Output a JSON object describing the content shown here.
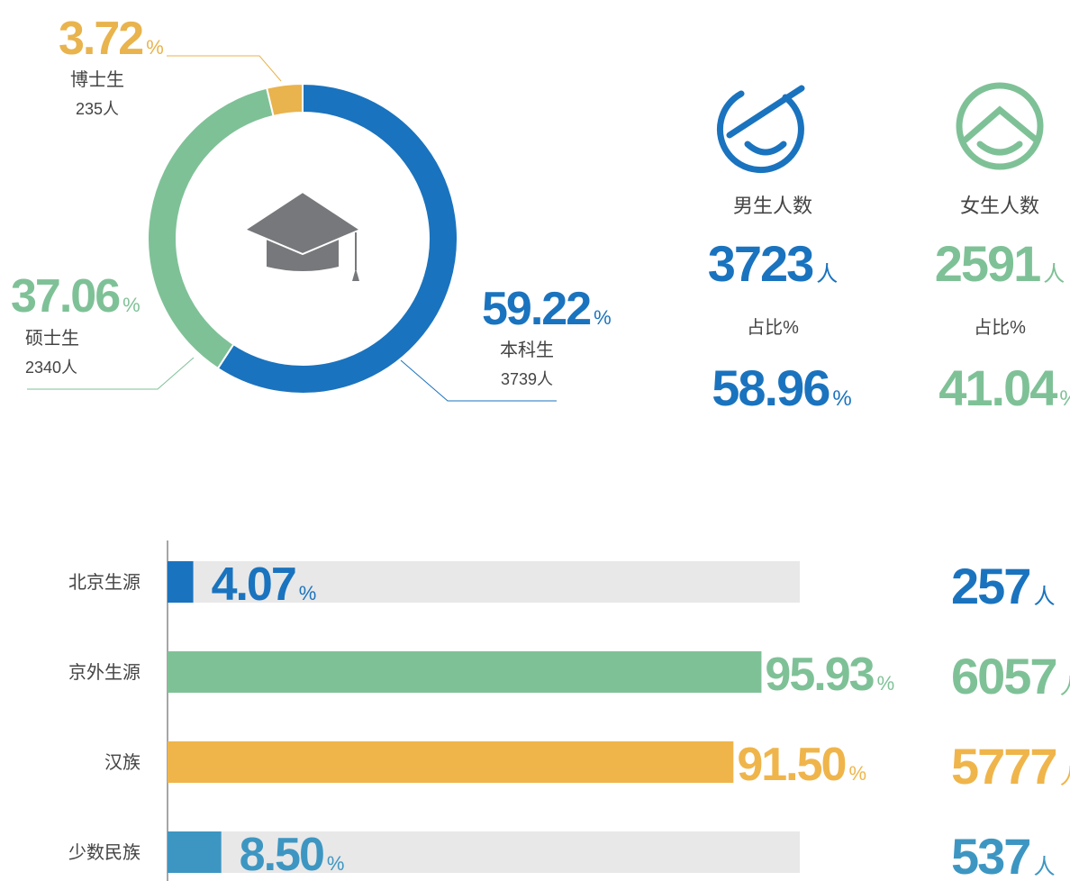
{
  "chart_data": [
    {
      "type": "donut",
      "categories": [
        "本科生",
        "硕士生",
        "博士生"
      ],
      "values": [
        59.22,
        37.06,
        3.72
      ],
      "counts": [
        3739,
        2340,
        235
      ],
      "value_unit": "%",
      "count_unit": "人",
      "colors": [
        "#1a73be",
        "#7fc197",
        "#e9b34d"
      ]
    },
    {
      "type": "hbar",
      "categories": [
        "北京生源",
        "京外生源",
        "汉族",
        "少数民族"
      ],
      "values": [
        4.07,
        95.93,
        91.5,
        8.5
      ],
      "value_labels": [
        "4.07",
        "95.93",
        "91.50",
        "8.50"
      ],
      "counts": [
        257,
        6057,
        5777,
        537
      ],
      "value_unit": "%",
      "count_unit": "人",
      "colors": [
        "#1a73be",
        "#7fc197",
        "#efb54b",
        "#3d96c2"
      ],
      "xlim": [
        0,
        100
      ]
    }
  ],
  "gender": [
    {
      "label": "男生人数",
      "count": 3723,
      "count_unit": "人",
      "share_label": "占比%",
      "share": 58.96,
      "share_unit": "%",
      "color": "#1a73be"
    },
    {
      "label": "女生人数",
      "count": 2591,
      "count_unit": "人",
      "share_label": "占比%",
      "share": 41.04,
      "share_unit": "%",
      "color": "#7fc197"
    }
  ]
}
